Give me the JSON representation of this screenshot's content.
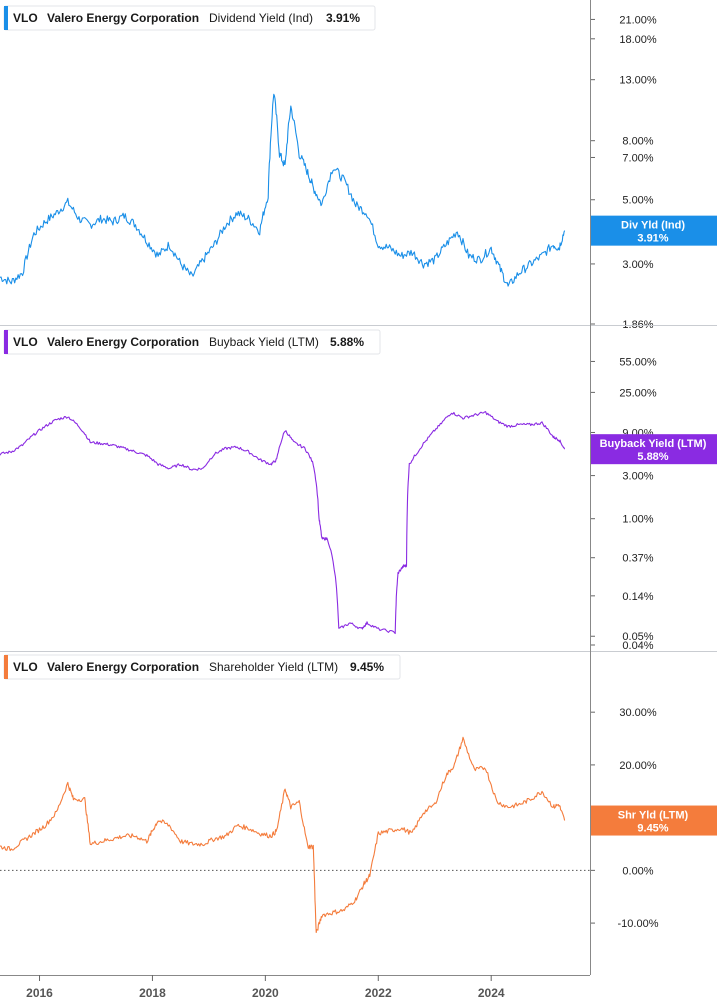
{
  "chart_data": [
    {
      "type": "line",
      "ticker": "VLO",
      "company": "Valero Energy Corporation",
      "metric": "Dividend Yield (Ind)",
      "current_value": "3.91%",
      "badge_lines": [
        "Div Yld (Ind)",
        "3.91%"
      ],
      "color": "#1a8fe8",
      "y_scale": "log",
      "ylim": [
        1.86,
        23
      ],
      "y_ticks": [
        "21.00%",
        "18.00%",
        "13.00%",
        "8.00%",
        "7.00%",
        "5.00%",
        "3.00%",
        "1.86%"
      ],
      "y_tick_values": [
        21,
        18,
        13,
        8,
        7,
        5,
        3,
        1.86
      ],
      "x": [
        2015.3,
        2015.5,
        2015.7,
        2015.9,
        2016.1,
        2016.3,
        2016.5,
        2016.7,
        2016.9,
        2017.1,
        2017.3,
        2017.5,
        2017.7,
        2017.9,
        2018.1,
        2018.3,
        2018.5,
        2018.7,
        2018.9,
        2019.1,
        2019.3,
        2019.5,
        2019.7,
        2019.9,
        2020.05,
        2020.15,
        2020.25,
        2020.35,
        2020.45,
        2020.6,
        2020.75,
        2020.85,
        2021.0,
        2021.2,
        2021.4,
        2021.6,
        2021.8,
        2022.0,
        2022.2,
        2022.4,
        2022.6,
        2022.8,
        2023.0,
        2023.2,
        2023.4,
        2023.6,
        2023.8,
        2024.0,
        2024.15,
        2024.3,
        2024.5,
        2024.7,
        2024.9,
        2025.1,
        2025.2,
        2025.3
      ],
      "series": [
        {
          "values": [
            2.7,
            2.6,
            2.8,
            3.8,
            4.2,
            4.5,
            4.9,
            4.3,
            4.1,
            4.3,
            4.2,
            4.4,
            4.1,
            3.6,
            3.2,
            3.5,
            3.0,
            2.7,
            3.1,
            3.5,
            4.1,
            4.5,
            4.3,
            3.9,
            5.2,
            11.8,
            7.2,
            6.5,
            10.5,
            7.2,
            6.2,
            5.5,
            4.8,
            6.5,
            5.8,
            4.8,
            4.5,
            3.5,
            3.4,
            3.2,
            3.3,
            3.0,
            3.1,
            3.5,
            3.9,
            3.2,
            3.1,
            3.4,
            2.9,
            2.5,
            2.8,
            3.0,
            3.2,
            3.5,
            3.4,
            3.91
          ]
        }
      ]
    },
    {
      "type": "line",
      "ticker": "VLO",
      "company": "Valero Energy Corporation",
      "metric": "Buyback Yield (LTM)",
      "current_value": "5.88%",
      "badge_lines": [
        "Buyback Yield (LTM)",
        "5.88%"
      ],
      "color": "#8a2be2",
      "y_scale": "log",
      "ylim": [
        0.04,
        95
      ],
      "y_ticks": [
        "55.00%",
        "25.00%",
        "9.00%",
        "3.00%",
        "1.00%",
        "0.37%",
        "0.14%",
        "0.05%",
        "0.04%"
      ],
      "y_tick_values": [
        55,
        25,
        9,
        3,
        1,
        0.37,
        0.14,
        0.05,
        0.04
      ],
      "x": [
        2015.3,
        2015.5,
        2015.7,
        2015.9,
        2016.1,
        2016.3,
        2016.5,
        2016.7,
        2016.9,
        2017.1,
        2017.3,
        2017.5,
        2017.7,
        2017.9,
        2018.1,
        2018.3,
        2018.5,
        2018.7,
        2018.9,
        2019.1,
        2019.3,
        2019.5,
        2019.7,
        2019.9,
        2020.1,
        2020.2,
        2020.35,
        2020.5,
        2020.7,
        2020.85,
        2020.95,
        2021.0,
        2021.1,
        2021.3,
        2021.5,
        2021.7,
        2021.8,
        2022.0,
        2022.3,
        2022.35,
        2022.45,
        2022.5,
        2022.55,
        2022.7,
        2022.9,
        2023.1,
        2023.3,
        2023.5,
        2023.7,
        2023.9,
        2024.1,
        2024.3,
        2024.5,
        2024.7,
        2024.9,
        2025.1,
        2025.2,
        2025.3
      ],
      "series": [
        {
          "values": [
            5.2,
            5.5,
            6.5,
            8.5,
            10.5,
            12.5,
            13.5,
            10.5,
            7.0,
            6.8,
            6.5,
            6.0,
            5.5,
            5.0,
            4.0,
            3.6,
            4.0,
            3.5,
            3.6,
            5.2,
            6.0,
            6.2,
            5.5,
            4.5,
            4.0,
            4.5,
            9.5,
            7.0,
            6.0,
            4.0,
            1.0,
            0.6,
            0.6,
            0.06,
            0.07,
            0.06,
            0.07,
            0.06,
            0.055,
            0.25,
            0.3,
            0.3,
            4.0,
            5.5,
            8.0,
            11.0,
            15.0,
            13.0,
            14.0,
            15.0,
            12.0,
            10.5,
            11.0,
            11.0,
            11.5,
            8.0,
            7.5,
            5.88
          ]
        }
      ]
    },
    {
      "type": "line",
      "ticker": "VLO",
      "company": "Valero Energy Corporation",
      "metric": "Shareholder Yield (LTM)",
      "current_value": "9.45%",
      "badge_lines": [
        "Shr Yld (LTM)",
        "9.45%"
      ],
      "color": "#f47c3c",
      "y_scale": "linear",
      "ylim": [
        -17,
        38
      ],
      "y_ticks": [
        "30.00%",
        "20.00%",
        "10.00%",
        "0.00%",
        "-10.00%"
      ],
      "y_tick_values": [
        30,
        20,
        10,
        0,
        -10
      ],
      "zero_line": true,
      "x": [
        2015.3,
        2015.5,
        2015.7,
        2015.9,
        2016.1,
        2016.3,
        2016.5,
        2016.6,
        2016.8,
        2016.9,
        2017.1,
        2017.3,
        2017.5,
        2017.7,
        2017.9,
        2018.0,
        2018.1,
        2018.3,
        2018.5,
        2018.7,
        2018.9,
        2019.1,
        2019.3,
        2019.5,
        2019.7,
        2019.9,
        2020.1,
        2020.2,
        2020.35,
        2020.45,
        2020.6,
        2020.75,
        2020.85,
        2020.9,
        2021.0,
        2021.2,
        2021.4,
        2021.6,
        2021.75,
        2021.85,
        2022.0,
        2022.2,
        2022.4,
        2022.6,
        2022.8,
        2023.0,
        2023.2,
        2023.35,
        2023.5,
        2023.7,
        2023.9,
        2024.1,
        2024.3,
        2024.5,
        2024.7,
        2024.9,
        2025.1,
        2025.2,
        2025.3
      ],
      "series": [
        {
          "values": [
            4.5,
            4.0,
            5.5,
            7.0,
            8.5,
            11.0,
            16.5,
            13.5,
            13.5,
            5.0,
            5.5,
            6.0,
            6.5,
            6.5,
            5.5,
            7.5,
            9.5,
            8.5,
            5.5,
            5.0,
            5.0,
            6.0,
            6.5,
            8.5,
            8.0,
            7.0,
            6.5,
            7.5,
            15.5,
            12.0,
            13.0,
            4.5,
            4.5,
            -12.0,
            -8.5,
            -8.0,
            -7.5,
            -5.5,
            -2.5,
            -1.0,
            7.0,
            7.5,
            8.0,
            7.0,
            11.0,
            12.5,
            18.0,
            20.0,
            25.0,
            19.0,
            19.5,
            13.0,
            12.0,
            12.5,
            13.5,
            15.0,
            12.0,
            12.5,
            9.45
          ]
        }
      ]
    }
  ],
  "x_axis": {
    "ticks": [
      "2016",
      "2018",
      "2020",
      "2022",
      "2024"
    ],
    "tick_values": [
      2016,
      2018,
      2020,
      2022,
      2024
    ],
    "range": [
      2015.3,
      2025.75
    ]
  }
}
